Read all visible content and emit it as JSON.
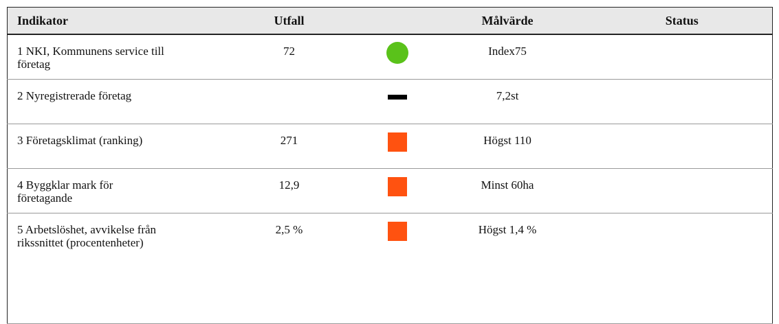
{
  "table": {
    "header": [
      "Indikator",
      "Utfall",
      "Målvärde",
      "Status"
    ],
    "rows": [
      [
        "1 NKI, Kommunens service till företag",
        "72",
        "Index75",
        ""
      ],
      [
        "2 Nyregistrerade företag",
        "",
        "7,2st",
        ""
      ],
      [
        "3 Företagsklimat (ranking)",
        "271",
        "Högst 110",
        ""
      ],
      [
        "4 Byggklar mark för företagande",
        "12,9",
        "Minst 60ha",
        ""
      ],
      [
        "5 Arbetslöshet, avvikelse från rikssnittet (procentenheter)",
        "2,5 %",
        "Högst 1,4 %",
        ""
      ]
    ]
  }
}
